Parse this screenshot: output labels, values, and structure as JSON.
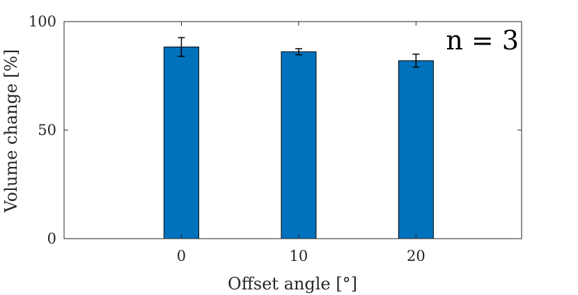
{
  "chart_data": {
    "type": "bar",
    "title": "",
    "xlabel": "Offset angle [°]",
    "ylabel": "Volume change [%]",
    "categories": [
      "0",
      "10",
      "20"
    ],
    "x": [
      0,
      10,
      20
    ],
    "values": [
      88.3,
      86.1,
      82.0
    ],
    "errors": [
      4.3,
      1.4,
      3.0
    ],
    "xlim": [
      -10,
      29
    ],
    "ylim": [
      0,
      100
    ],
    "yticks": [
      0,
      50,
      100
    ],
    "ytick_labels": [
      "0",
      "50",
      "100"
    ],
    "xtick_labels": [
      "0",
      "10",
      "20"
    ],
    "annotation": "n = 3",
    "grid": false,
    "colors": {
      "bar": "#0072BD",
      "bar_edge": "#000000",
      "axis": "#262626",
      "error": "#000000"
    }
  }
}
